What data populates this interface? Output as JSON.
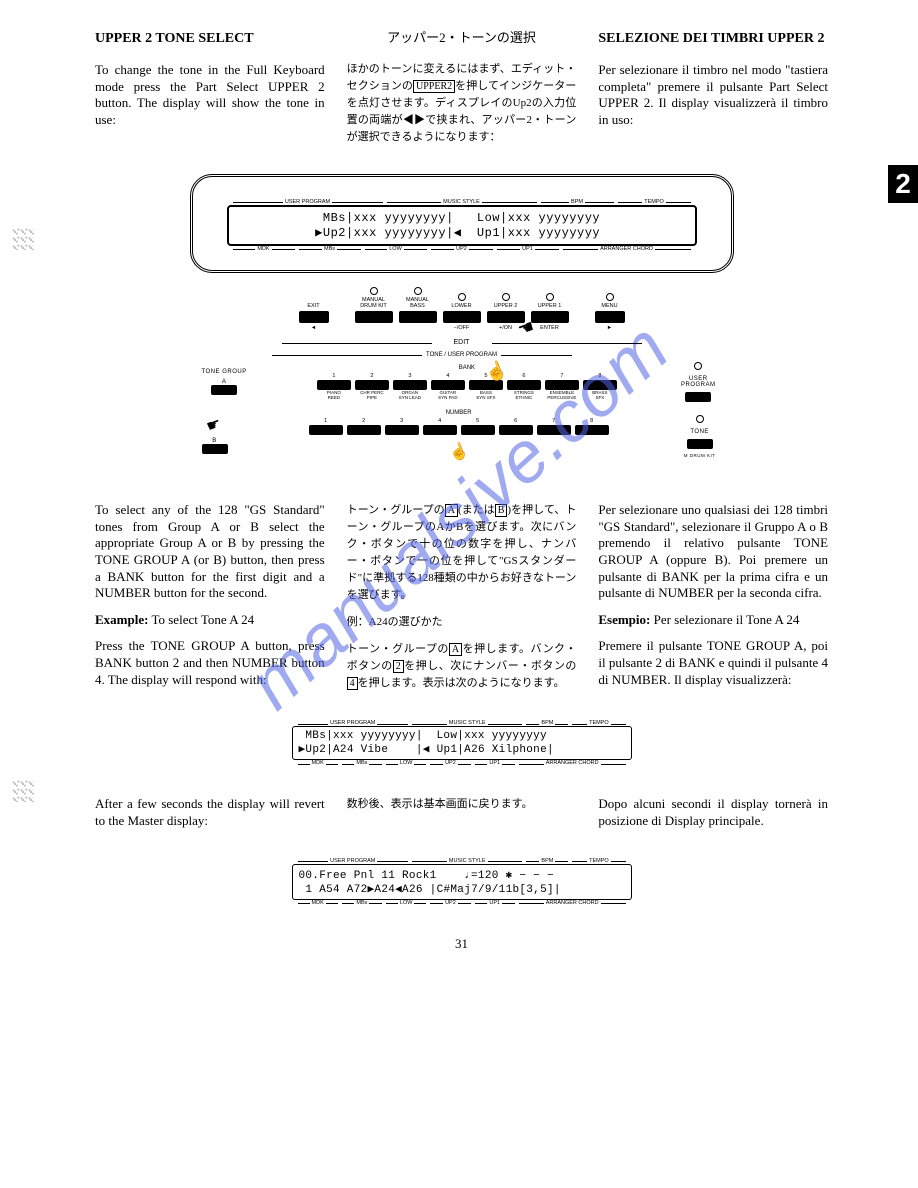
{
  "pageNumber": "31",
  "sideTab": "2",
  "watermark": "manualsive.com",
  "section1": {
    "en": {
      "title": "UPPER 2 TONE SELECT",
      "body": "To change the tone in the Full Keyboard mode press the Part Select UPPER 2 button. The display will show the tone in use:"
    },
    "jp": {
      "title": "アッパー2・トーンの選択",
      "body_pre": "ほかのトーンに変えるにはまず、エディット・セクションの",
      "body_box": "UPPER2",
      "body_post": "を押してインジケーターを点灯させます。ディスプレイのUp2の入力位置の両端が◀▶で挟まれ、アッパー2・トーンが選択できるようになります："
    },
    "it": {
      "title": "SELEZIONE DEI TIMBRI UPPER 2",
      "body": "Per selezionare il timbro nel modo \"tastiera completa\" premere il pulsante Part Select UPPER 2. Il display visualizzerà il timbro in uso:"
    }
  },
  "lcd1": {
    "topLabels": [
      "USER PROGRAM",
      "MUSIC STYLE",
      "BPM",
      "TEMPO"
    ],
    "line1": " MBs|xxx yyyyyyyy|   Low|xxx yyyyyyyy ",
    "line2": "▶Up2|xxx yyyyyyyy|◀  Up1|xxx yyyyyyyy ",
    "botLabels": [
      "MDK",
      "MBs",
      "LOW",
      "UP2",
      "UP1",
      "ARRANGER CHORD"
    ]
  },
  "buttonRow": {
    "buttons": [
      {
        "top": "EXIT",
        "bot": "◄"
      },
      {
        "top": "MANUAL\nDRUM KIT",
        "bot": ""
      },
      {
        "top": "MANUAL\nBASS",
        "bot": ""
      },
      {
        "top": "LOWER",
        "bot": "−/OFF"
      },
      {
        "top": "UPPER 2",
        "bot": "+/ON",
        "hand": true
      },
      {
        "top": "UPPER 1",
        "bot": "ENTER"
      },
      {
        "top": "MENU",
        "bot": "►"
      }
    ],
    "editLabel": "EDIT"
  },
  "bankPanel": {
    "headerLine": "TONE / USER PROGRAM",
    "bankLabel": "BANK",
    "numberLabel": "NUMBER",
    "toneGroupLabel": "TONE GROUP",
    "userProgramLabel": "USER\nPROGRAM",
    "toneLabel": "TONE",
    "drumKitLabel": "M DRUM KIT",
    "groupA": "A",
    "groupB": "B",
    "bankNums": [
      "1",
      "2",
      "3",
      "4",
      "5",
      "6",
      "7",
      "8"
    ],
    "bankLabels": [
      "PIANO\nREED",
      "CHR PERC\nPIPE",
      "ORGAN\nSYN LEAD",
      "GUITAR\nSYN PAD",
      "BASS\nSYN SFX",
      "STRINGS\nETHNIC",
      "ENSEMBLE\nPERCUSSIVE",
      "BRASS\nSFX"
    ],
    "numberNums": [
      "1",
      "2",
      "3",
      "4",
      "5",
      "6",
      "7",
      "8"
    ]
  },
  "section2": {
    "en": {
      "body1": "To select any of the 128 \"GS Standard\" tones from Group A or B select the appropriate Group A or B by pressing the TONE GROUP A (or B) button, then press a BANK button for the first digit and a NUMBER button for the second.",
      "exLabel": "Example:",
      "exText": " To select Tone A 24",
      "body2": "Press the TONE GROUP A button, press BANK button 2 and then NUMBER button 4. The display will respond with:"
    },
    "jp": {
      "body1_pre": "トーン・グループの",
      "boxA": "A",
      "mid1": "(または",
      "boxB": "B",
      "body1_post": ")を押して、トーン・グループのAかBを選びます。次にバンク・ボタンで十の位の数字を押し、ナンバー・ボタンで一の位を押して\"GSスタンダード\"に準拠する128種類の中からお好きなトーンを選びます。",
      "exLabel": "例：",
      "exText": "A24の選びかた",
      "body2_pre": "トーン・グループの",
      "box2A": "A",
      "body2_mid": "を押します。バンク・ボタンの",
      "box2": "2",
      "body2_mid2": "を押し、次にナンバー・ボタンの",
      "box4": "4",
      "body2_post": "を押します。表示は次のようになります。"
    },
    "it": {
      "body1": "Per selezionare uno qualsiasi dei 128 timbri \"GS Standard\", selezionare il Gruppo A o B premendo il relativo pulsante TONE GROUP A (oppure B). Poi premere un pulsante di BANK per la prima cifra e un pulsante di NUMBER per la seconda cifra.",
      "exLabel": "Esempio:",
      "exText": " Per selezionare il Tone A 24",
      "body2": "Premere il pulsante TONE GROUP A, poi il pulsante 2 di BANK e quindi il pulsante 4 di NUMBER. Il display visualizzerà:"
    }
  },
  "lcd2": {
    "topLabels": [
      "USER PROGRAM",
      "MUSIC STYLE",
      "BPM",
      "TEMPO"
    ],
    "line1": " MBs|xxx yyyyyyyy|  Low|xxx yyyyyyyy",
    "line2": "▶Up2|A24 Vibe    |◀ Up1|A26 Xilphone|",
    "botLabels": [
      "MDK",
      "MBs",
      "LOW",
      "UP2",
      "UP1",
      "ARRANGER CHORD"
    ]
  },
  "section3": {
    "en": "After a few seconds the display will revert to the Master display:",
    "jp": "数秒後、表示は基本画面に戻ります。",
    "it": "Dopo alcuni secondi il display tornerà in posizione di Display principale."
  },
  "lcd3": {
    "topLabels": [
      "USER PROGRAM",
      "MUSIC STYLE",
      "BPM",
      "TEMPO"
    ],
    "line1": "00.Free Pnl 11 Rock1    ♩=120 ✱ − − −",
    "line2": " 1 A54 A72▶A24◀A26 |C#Maj7/9/11b[3,5]|",
    "botLabels": [
      "MDK",
      "MBs",
      "LOW",
      "UP2",
      "UP1",
      "ARRANGER CHORD"
    ]
  }
}
